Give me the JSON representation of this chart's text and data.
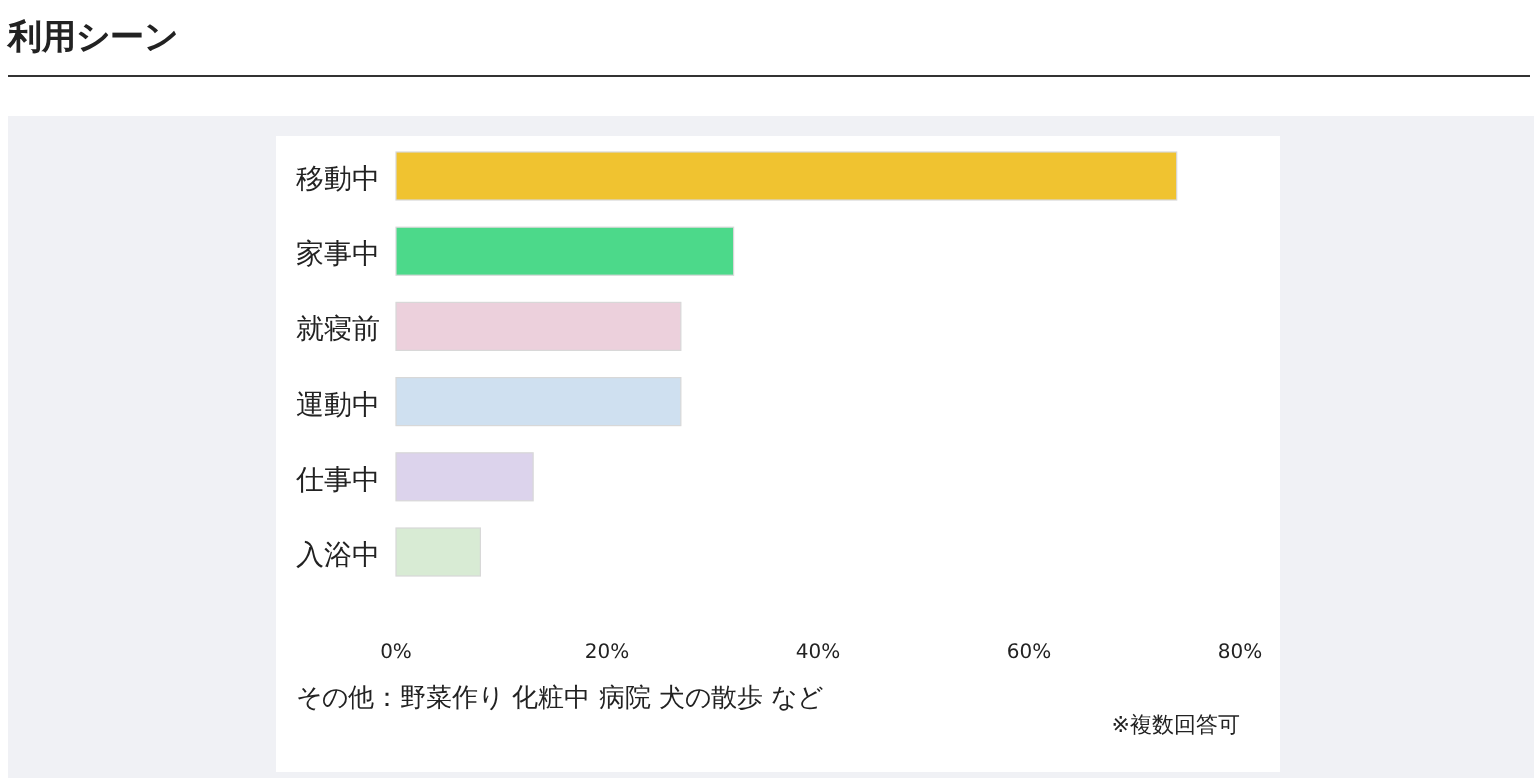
{
  "chart_data": {
    "type": "bar",
    "orientation": "horizontal",
    "title": "利用シーン",
    "categories": [
      "移動中",
      "家事中",
      "就寝前",
      "運動中",
      "仕事中",
      "入浴中"
    ],
    "values": [
      74,
      32,
      27,
      27,
      13,
      8
    ],
    "colors": [
      "#f0c330",
      "#4cd98a",
      "#ecd0dc",
      "#cfe0f0",
      "#dcd3ec",
      "#d8ebd4"
    ],
    "xlim": [
      0,
      80
    ],
    "xticks": [
      {
        "value": 0,
        "label": "0%"
      },
      {
        "value": 20,
        "label": "20%"
      },
      {
        "value": 40,
        "label": "40%"
      },
      {
        "value": 60,
        "label": "60%"
      },
      {
        "value": 80,
        "label": "80%"
      }
    ],
    "annotations": [
      "その他：野菜作り 化粧中 病院 犬の散歩 など",
      "※複数回答可"
    ]
  }
}
